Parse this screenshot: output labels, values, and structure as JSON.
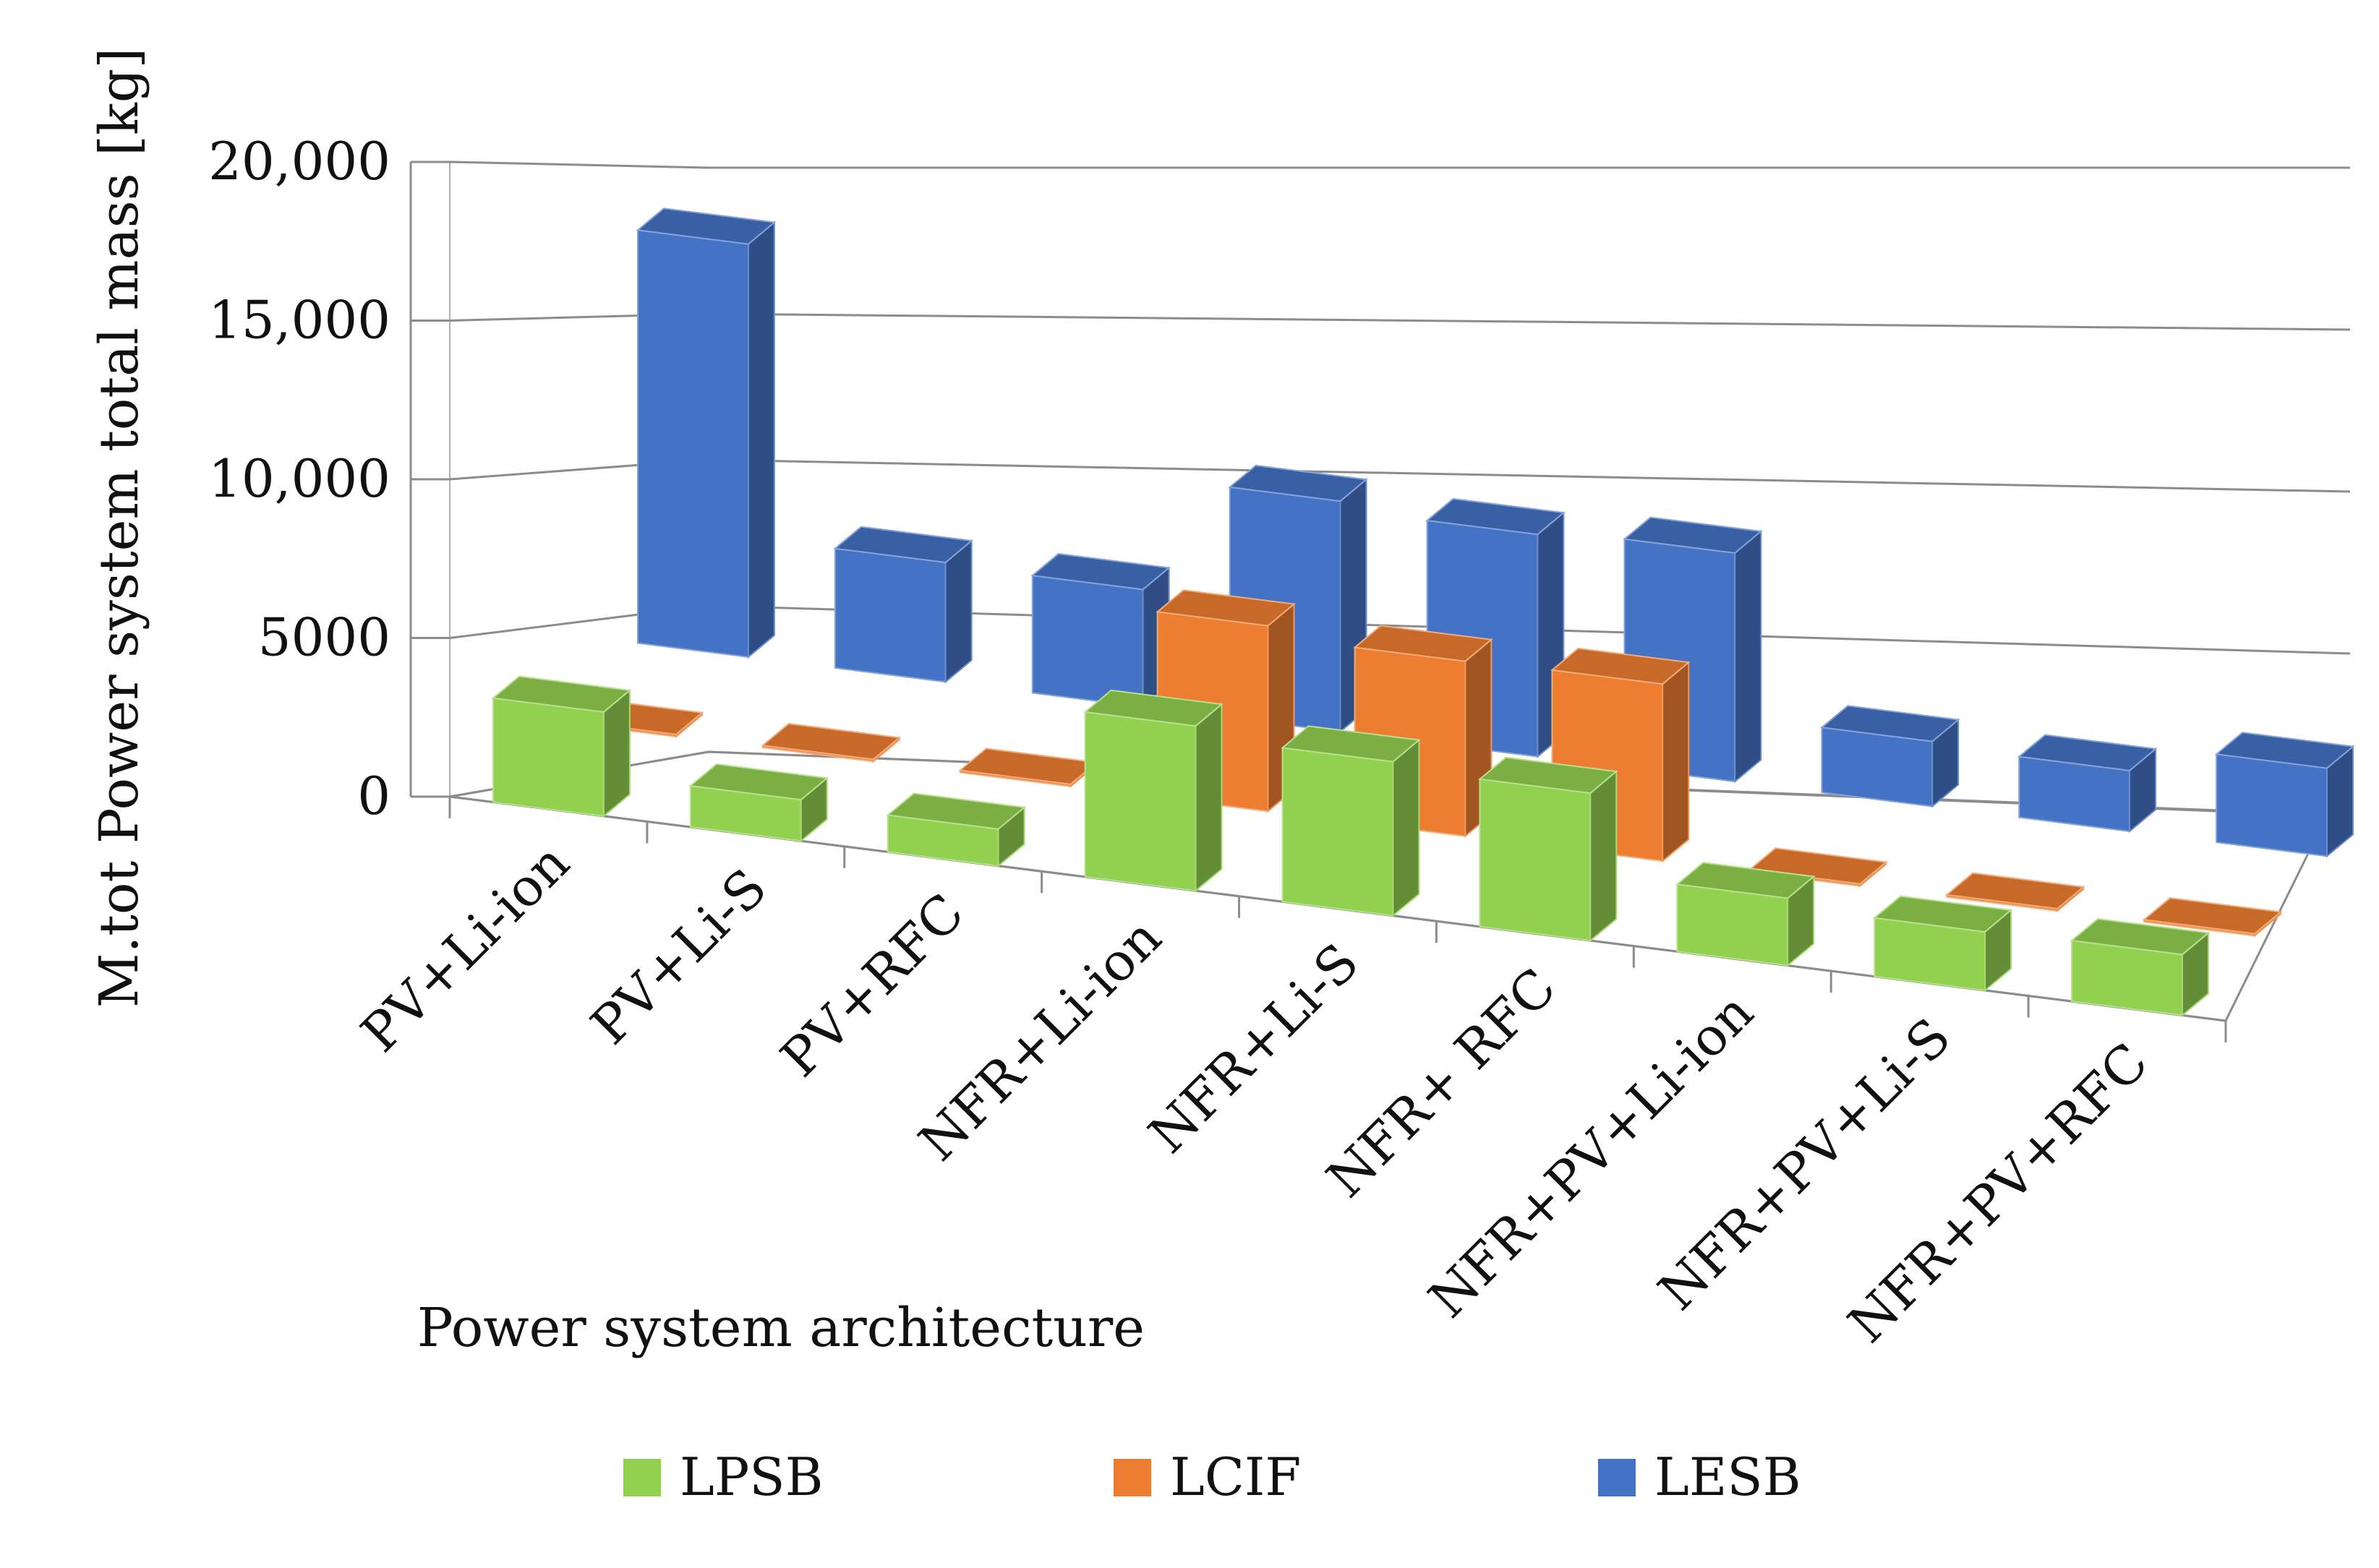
{
  "chart_data": {
    "type": "bar",
    "variant": "3d-clustered-column",
    "title": "",
    "xlabel": "Power system architecture",
    "ylabel": "M.tot Power system total mass [kg]",
    "ylim": [
      0,
      20000
    ],
    "yticks": [
      0,
      5000,
      10000,
      15000,
      20000
    ],
    "ytick_labels": [
      "0",
      "5000",
      "10,000",
      "15,000",
      "20,000"
    ],
    "grid": true,
    "legend_position": "bottom",
    "categories": [
      "PV+Li-ion",
      "PV+Li-S",
      "PV+RFC",
      "NFR+Li-ion",
      "NFR+Li-S",
      "NFR+ RFC",
      "NFR+PV+Li-ion",
      "NFR+PV+Li-S",
      "NFR+PV+RFC"
    ],
    "series": [
      {
        "name": "LPSB",
        "color": "#92d050",
        "values": [
          4800,
          1900,
          1700,
          7600,
          7100,
          6800,
          3100,
          2700,
          2800
        ]
      },
      {
        "name": "LCIF",
        "color": "#ed7d31",
        "values": [
          100,
          100,
          100,
          8700,
          8200,
          8300,
          100,
          100,
          100
        ]
      },
      {
        "name": "LESB",
        "color": "#4472c4",
        "values": [
          19700,
          5700,
          5600,
          11000,
          10600,
          10900,
          3100,
          2900,
          4200
        ]
      }
    ]
  }
}
